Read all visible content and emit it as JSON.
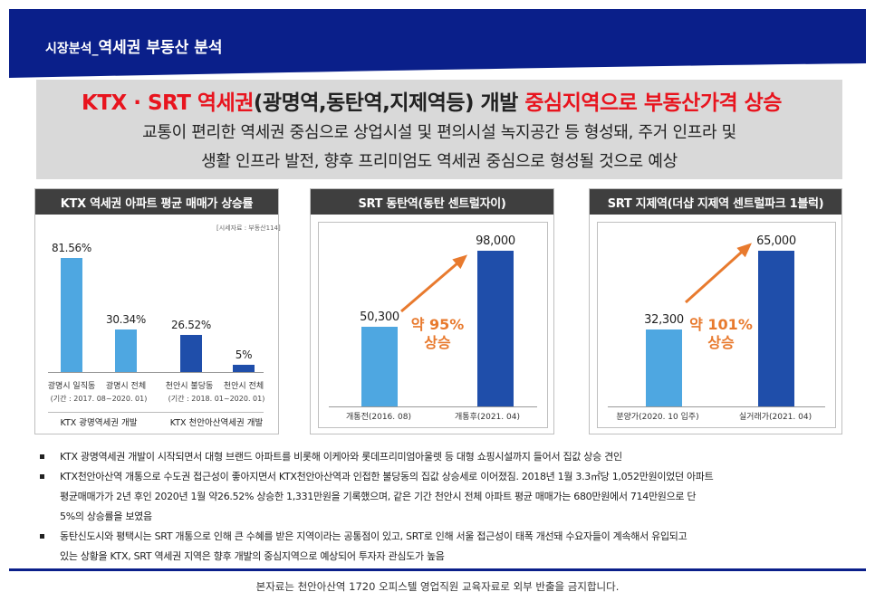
{
  "header": {
    "prefix": "시장분석_",
    "title": "역세권 부동산 분석"
  },
  "hero": {
    "title_dark_1": "KTX · SRT 역세권",
    "title_dark_2": "(광명역,동탄역,지제역등) 개발",
    "title_red": "중심지역으로 부동산가격 상승",
    "line1": "교통이 편리한 역세권 중심으로 상업시설 및 편의시설 녹지공간 등 형성돼, 주거 인프라 및",
    "line2": "생활 인프라 발전, 향후 프리미엄도 역세권 중심으로 형성될 것으로 예상"
  },
  "colors": {
    "light_bar": "#4ea7e1",
    "dark_bar": "#1f4eaa",
    "accent": "#e87a2e",
    "red": "#e8141e",
    "navy": "#0a1f8a"
  },
  "chart_data": [
    {
      "type": "bar",
      "title": "KTX 역세권 아파트 평균 매매가 상승률",
      "source": "[시세자료 : 부동산114]",
      "categories": [
        "광명시 일직동",
        "광명시 전체",
        "천안시 불당동",
        "천안시 전체"
      ],
      "values": [
        81.56,
        30.34,
        26.52,
        5
      ],
      "value_labels": [
        "81.56%",
        "30.34%",
        "26.52%",
        "5%"
      ],
      "periods": [
        "(기간 : 2017. 08~2020. 01)",
        "(기간 : 2018. 01~2020. 01)"
      ],
      "groups": [
        "KTX 광명역세권 개발",
        "KTX 천안아산역세권 개발"
      ]
    },
    {
      "type": "bar",
      "title": "SRT 동탄역(동탄 센트럴자이)",
      "categories": [
        "개통전(2016. 08)",
        "개통후(2021. 04)"
      ],
      "values": [
        50300,
        98000
      ],
      "value_labels": [
        "50,300",
        "98,000"
      ],
      "annotation": [
        "약 95%",
        "상승"
      ]
    },
    {
      "type": "bar",
      "title": "SRT 지제역(더샵 지제역 센트럴파크 1블럭)",
      "categories": [
        "분양가(2020. 10 입주)",
        "실거래가(2021. 04)"
      ],
      "values": [
        32300,
        65000
      ],
      "value_labels": [
        "32,300",
        "65,000"
      ],
      "annotation": [
        "약 101%",
        "상승"
      ]
    }
  ],
  "bullets": [
    {
      "lines": [
        "KTX 광명역세권 개발이 시작되면서 대형 브랜드 아파트를 비롯해 이케아와 롯데프리미엄아울렛 등 대형 쇼핑시설까지 들어서 집값 상승 견인"
      ]
    },
    {
      "lines": [
        "KTX천안아산역 개통으로 수도권 접근성이 좋아지면서 KTX천안아산역과 인접한 불당동의 집값 상승세로 이어졌짐. 2018년 1월 3.3㎡당 1,052만원이었던 아파트",
        "평균매매가가 2년 후인 2020년 1월 약26.52% 상승한 1,331만원을 기록했으며, 같은 기간 천안시 전체 아파트 평균 매매가는 680만원에서 714만원으로 단",
        "5%의 상승률을 보였음"
      ]
    },
    {
      "lines": [
        "동탄신도시와 평택시는 SRT 개통으로 인해 큰 수혜를 받은 지역이라는 공통점이 있고, SRT로 인해 서울 접근성이 태폭 개선돼 수요자들이 계속해서 유입되고",
        "있는 상황을  KTX, SRT 역세권 지역은 향후 개발의 중심지역으로 예상되어 투자자 관심도가 높음"
      ]
    }
  ],
  "footer": "본자료는 천안아산역 1720 오피스텔 영업직원 교육자료로 외부 반출을 금지합니다."
}
